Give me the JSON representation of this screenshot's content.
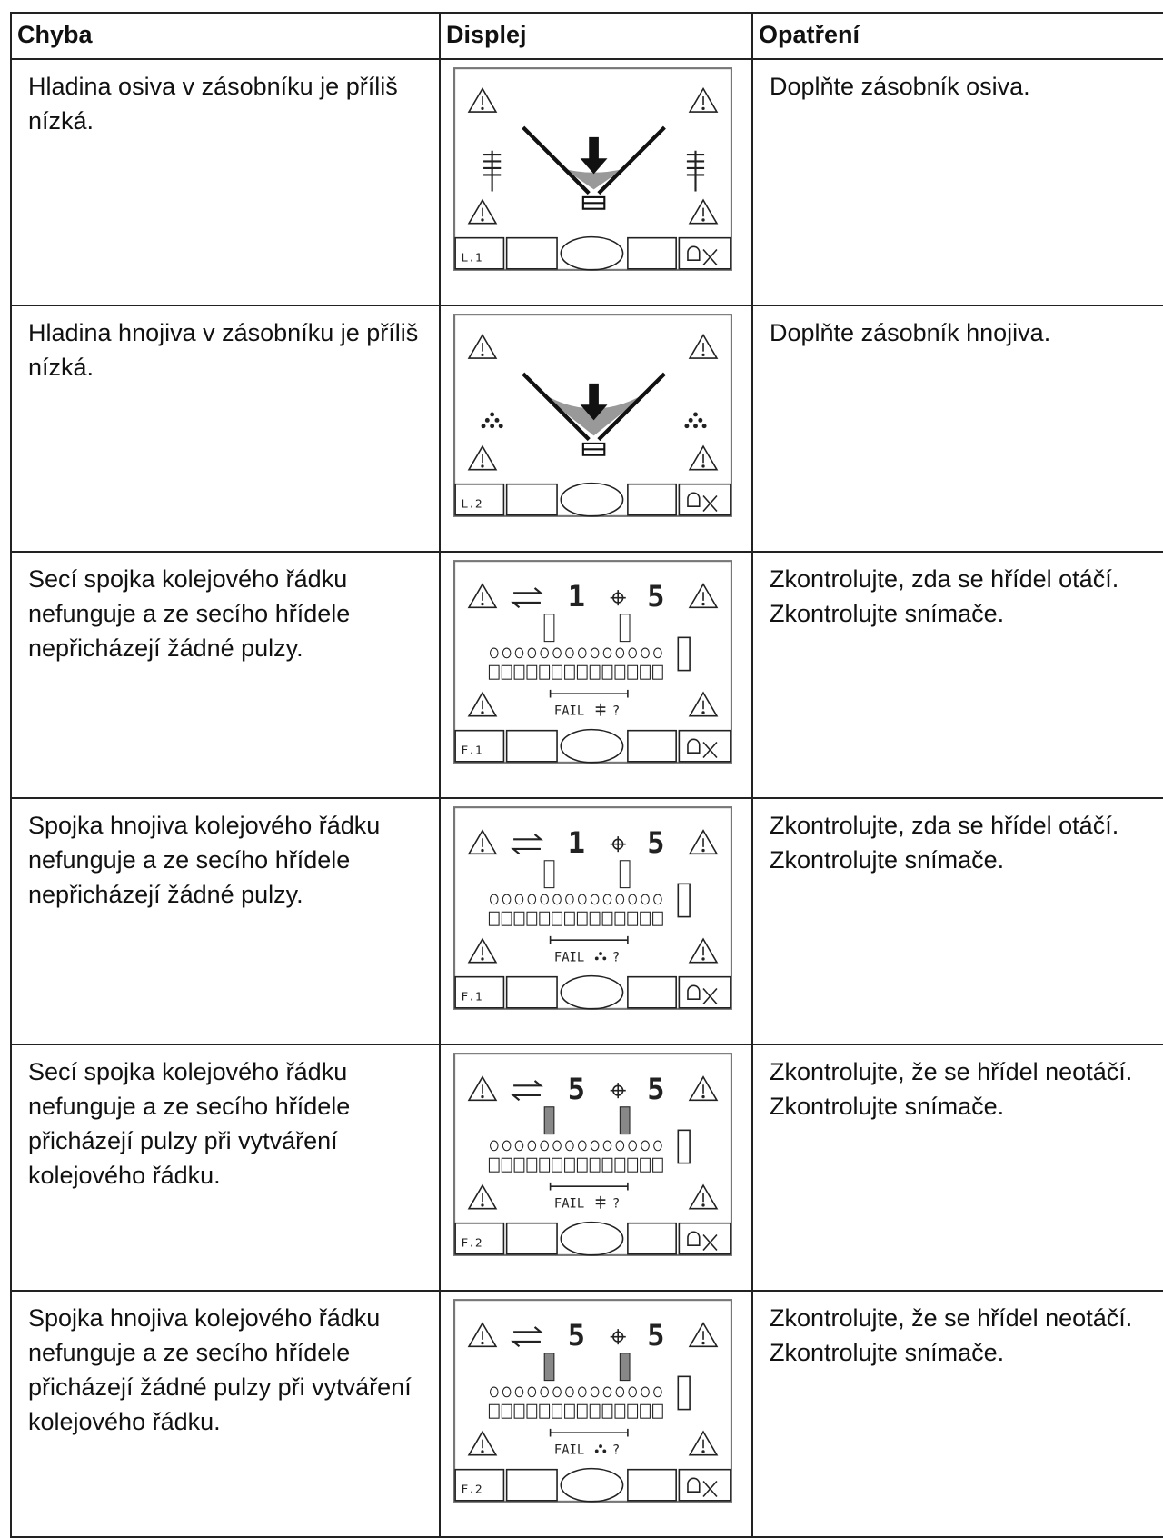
{
  "table": {
    "headers": [
      "Chyba",
      "Displej",
      "Opatření"
    ],
    "rows": [
      {
        "error": "Hladina osiva v zásobníku je příliš nízká.",
        "display": {
          "code": "L.1"
        },
        "action": "Doplňte zásobník osiva."
      },
      {
        "error": "Hladina hnojiva v zásobníku je příliš nízká.",
        "display": {
          "code": "L.2"
        },
        "action": "Doplňte zásobník hnojiva."
      },
      {
        "error": "Secí spojka kolejového řádku nefunguje a ze secího hřídele nepřicházejí žádné pulzy.",
        "display": {
          "code": "F.1",
          "left": "1",
          "right": "5",
          "fail": "FAIL",
          "query": "?"
        },
        "action": "Zkontrolujte, zda se hřídel otáčí. Zkontrolujte snímače."
      },
      {
        "error": "Spojka hnojiva kolejového řádku nefunguje a ze secího hřídele nepřicházejí žádné pulzy.",
        "display": {
          "code": "F.1",
          "left": "1",
          "right": "5",
          "fail": "FAIL",
          "query": "?"
        },
        "action": "Zkontrolujte, zda se hřídel otáčí. Zkontrolujte snímače."
      },
      {
        "error": "Secí spojka kolejového řádku nefunguje a ze secího hřídele přicházejí pulzy při vytváření kolejového řádku.",
        "display": {
          "code": "F.2",
          "left": "5",
          "right": "5",
          "fail": "FAIL",
          "query": "?"
        },
        "action": "Zkontrolujte, že se hřídel neotáčí. Zkontrolujte snímače."
      },
      {
        "error": "Spojka hnojiva kolejového řádku nefunguje a ze secího hřídele přicházejí žádné pulzy při vytváření kolejového řádku.",
        "display": {
          "code": "F.2",
          "left": "5",
          "right": "5",
          "fail": "FAIL",
          "query": "?"
        },
        "action": "Zkontrolujte, že se hřídel neotáčí. Zkontrolujte snímače."
      }
    ]
  }
}
